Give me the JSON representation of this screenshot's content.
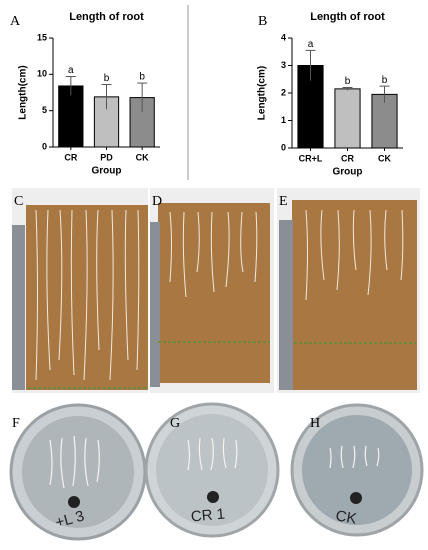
{
  "chart_data": [
    {
      "type": "bar",
      "panel_label": "A",
      "title": "Length of root",
      "y_label": "Length(cm)",
      "x_label": "Group",
      "categories": [
        "CR",
        "PD",
        "CK"
      ],
      "values": [
        8.4,
        6.9,
        6.8
      ],
      "errors": [
        1.3,
        1.7,
        2.0
      ],
      "colors": [
        "#000000",
        "#bfbfbf",
        "#8c8c8c"
      ],
      "annotations": [
        "a",
        "b",
        "b"
      ],
      "ylim": [
        0,
        15
      ],
      "yticks": [
        0,
        5,
        10,
        15
      ]
    },
    {
      "type": "bar",
      "panel_label": "B",
      "title": "Length of root",
      "y_label": "Length(cm)",
      "x_label": "Group",
      "categories": [
        "CR+L",
        "CR",
        "CK"
      ],
      "values": [
        3.0,
        2.15,
        1.95
      ],
      "errors": [
        0.55,
        0.05,
        0.3
      ],
      "colors": [
        "#000000",
        "#bfbfbf",
        "#8c8c8c"
      ],
      "annotations": [
        "a",
        "b",
        "b"
      ],
      "ylim": [
        0,
        4
      ],
      "yticks": [
        0,
        1,
        2,
        3,
        4
      ]
    }
  ],
  "photos": [
    {
      "label": "C"
    },
    {
      "label": "D"
    },
    {
      "label": "E"
    },
    {
      "label": "F",
      "writing": "+L 3"
    },
    {
      "label": "G",
      "writing": "CR 1"
    },
    {
      "label": "H",
      "writing": "CK"
    }
  ]
}
